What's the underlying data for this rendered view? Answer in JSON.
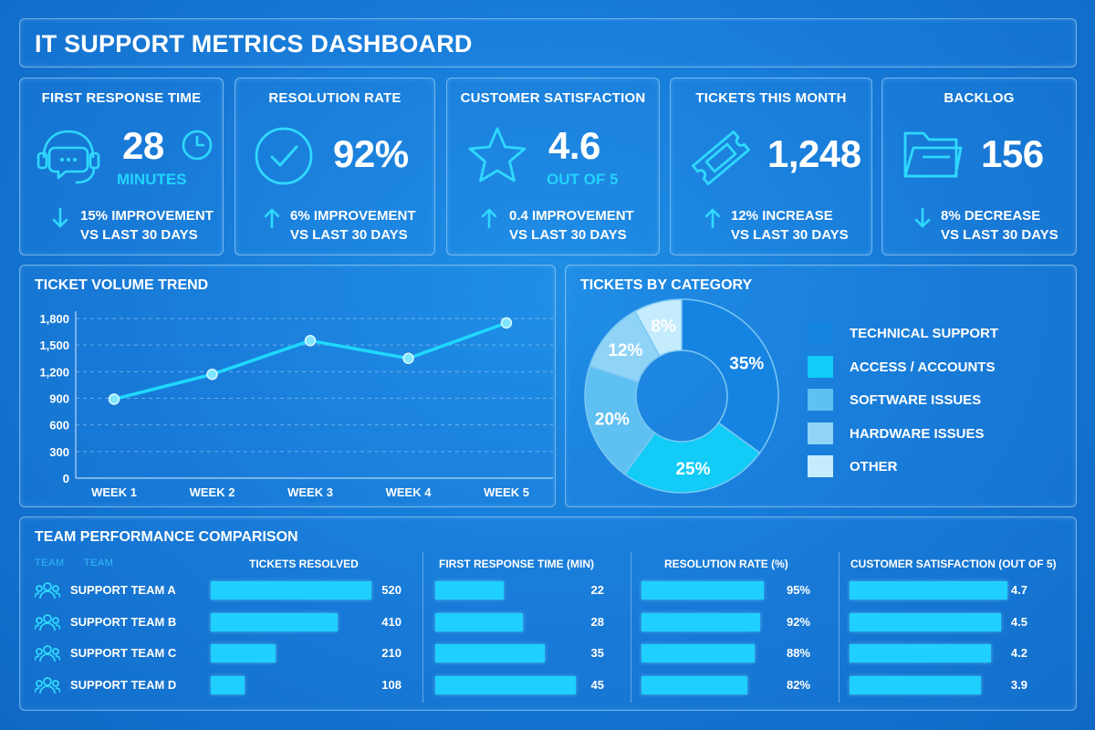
{
  "title": "IT SUPPORT METRICS DASHBOARD",
  "colors": {
    "accent": "#22d3ff",
    "bar": "#1fd0ff",
    "background": "#1577d4"
  },
  "kpis": [
    {
      "title": "FIRST RESPONSE TIME",
      "value": "28",
      "unit": "MINUTES",
      "icon": "headset-chat-icon",
      "extra_icon": "clock-icon",
      "direction": "down",
      "change": "15% IMPROVEMENT",
      "period": "VS LAST 30 DAYS"
    },
    {
      "title": "RESOLUTION RATE",
      "value": "92%",
      "unit": "",
      "icon": "checkmark-circle-icon",
      "direction": "up",
      "change": "6% IMPROVEMENT",
      "period": "VS LAST 30 DAYS"
    },
    {
      "title": "CUSTOMER SATISFACTION",
      "value": "4.6",
      "unit": "OUT OF 5",
      "icon": "star-icon",
      "direction": "up",
      "change": "0.4 IMPROVEMENT",
      "period": "VS LAST 30 DAYS"
    },
    {
      "title": "TICKETS THIS MONTH",
      "value": "1,248",
      "unit": "",
      "icon": "ticket-icon",
      "direction": "up",
      "change": "12% INCREASE",
      "period": "VS LAST 30 DAYS"
    },
    {
      "title": "BACKLOG",
      "value": "156",
      "unit": "",
      "icon": "folder-icon",
      "direction": "down",
      "change": "8% DECREASE",
      "period": "VS LAST 30 DAYS"
    }
  ],
  "trend": {
    "title": "TICKET VOLUME TREND"
  },
  "category": {
    "title": "TICKETS BY CATEGORY"
  },
  "team": {
    "title": "TEAM PERFORMANCE COMPARISON",
    "ghost_headers": [
      "TEAM",
      "TEAM"
    ],
    "headers": [
      "TICKETS RESOLVED",
      "FIRST RESPONSE TIME (MIN)",
      "RESOLUTION RATE (%)",
      "CUSTOMER SATISFACTION (OUT OF 5)"
    ],
    "rows": [
      {
        "name": "SUPPORT TEAM A",
        "icon": "team-icon",
        "resolved": "520",
        "response": "22",
        "rate": "95%",
        "csat": "4.7"
      },
      {
        "name": "SUPPORT TEAM B",
        "icon": "team-icon",
        "resolved": "410",
        "response": "28",
        "rate": "92%",
        "csat": "4.5"
      },
      {
        "name": "SUPPORT TEAM C",
        "icon": "team-icon",
        "resolved": "210",
        "response": "35",
        "rate": "88%",
        "csat": "4.2"
      },
      {
        "name": "SUPPORT TEAM D",
        "icon": "team-icon",
        "resolved": "108",
        "response": "45",
        "rate": "82%",
        "csat": "3.9"
      }
    ]
  },
  "chart_data": [
    {
      "type": "line",
      "title": "TICKET VOLUME TREND",
      "categories": [
        "WEEK 1",
        "WEEK 2",
        "WEEK 3",
        "WEEK 4",
        "WEEK 5"
      ],
      "series": [
        {
          "values": [
            890,
            1170,
            1550,
            1350,
            1750
          ]
        }
      ],
      "yticks": [
        "0",
        "300",
        "600",
        "900",
        "1,200",
        "1,500",
        "1,800"
      ],
      "ylim": [
        0,
        1800
      ],
      "grid": true
    },
    {
      "type": "pie",
      "title": "TICKETS BY CATEGORY",
      "categories": [
        "TECHNICAL SUPPORT",
        "ACCESS / ACCOUNTS",
        "SOFTWARE ISSUES",
        "HARDWARE ISSUES",
        "OTHER"
      ],
      "values": [
        35,
        25,
        20,
        12,
        8
      ],
      "labels": [
        "35%",
        "25%",
        "20%",
        "12%",
        "8%"
      ],
      "colors": [
        "#1583e2",
        "#12cbf7",
        "#5fc0f2",
        "#8fd3f7",
        "#c4ecfc"
      ],
      "donut": true,
      "legend": "right"
    },
    {
      "type": "bar",
      "title": "TEAM PERFORMANCE COMPARISON",
      "categories": [
        "SUPPORT TEAM A",
        "SUPPORT TEAM B",
        "SUPPORT TEAM C",
        "SUPPORT TEAM D"
      ],
      "series": [
        {
          "name": "TICKETS RESOLVED",
          "values": [
            520,
            410,
            210,
            108
          ]
        },
        {
          "name": "FIRST RESPONSE TIME (MIN)",
          "values": [
            22,
            28,
            35,
            45
          ]
        },
        {
          "name": "RESOLUTION RATE (%)",
          "values": [
            95,
            92,
            88,
            82
          ]
        },
        {
          "name": "CUSTOMER SATISFACTION (OUT OF 5)",
          "values": [
            4.7,
            4.5,
            4.2,
            3.9
          ]
        }
      ],
      "orientation": "horizontal"
    }
  ]
}
